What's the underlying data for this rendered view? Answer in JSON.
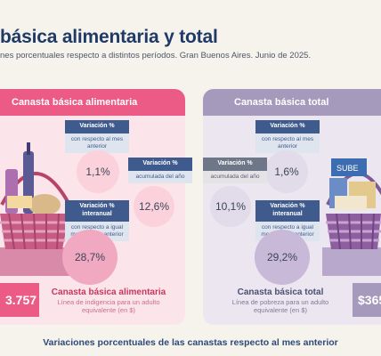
{
  "header": {
    "title": "básica alimentaria y total",
    "subtitle": "nes porcentuales respecto a distintos períodos. Gran Buenos Aires. Junio de 2025."
  },
  "cba": {
    "panel_title": "Canasta básica alimentaria",
    "monthly": {
      "tag_title": "Variación %",
      "tag_desc": "con respecto al mes anterior",
      "value": "1,1%"
    },
    "ytd": {
      "tag_title": "Variación %",
      "tag_desc": "acumulada del año",
      "value": "12,6%"
    },
    "yoy": {
      "tag_title": "Variación % interanual",
      "tag_desc": "con respecto a igual mes del año anterior",
      "value": "28,7%"
    },
    "amount": "3.757",
    "line_title": "Canasta básica alimentaria",
    "line_desc": "Línea de indigencia para un adulto equivalente (en $)"
  },
  "cbt": {
    "panel_title": "Canasta básica total",
    "monthly": {
      "tag_title": "Variación %",
      "tag_desc": "con respecto al mes anterior",
      "value": "1,6%"
    },
    "ytd": {
      "tag_title": "Variación %",
      "tag_desc": "acumulada del año",
      "value": "10,1%"
    },
    "yoy": {
      "tag_title": "Variación % interanual",
      "tag_desc": "con respecto a igual mes del año anterior",
      "value": "29,2%"
    },
    "amount": "$365",
    "line_title": "Canasta básica total",
    "line_desc": "Línea de pobreza para un adulto equivalente (en $)",
    "box_label": "SUBE"
  },
  "footer": {
    "text": "Variaciones porcentuales de las canastas respecto al mes anterior"
  },
  "colors": {
    "pink": "#ec5a86",
    "lavender": "#a59abb",
    "navy": "#1f3a66"
  }
}
